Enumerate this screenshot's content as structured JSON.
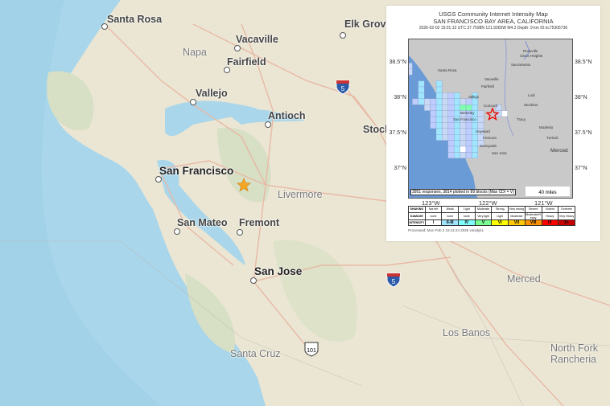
{
  "main_map": {
    "cities": [
      {
        "name": "Santa Rosa",
        "style": "normal"
      },
      {
        "name": "Napa",
        "style": "light"
      },
      {
        "name": "Vacaville",
        "style": "normal"
      },
      {
        "name": "Elk Grove",
        "style": "normal"
      },
      {
        "name": "Fairfield",
        "style": "normal"
      },
      {
        "name": "Vallejo",
        "style": "normal"
      },
      {
        "name": "Antioch",
        "style": "normal"
      },
      {
        "name": "Stock",
        "style": "normal"
      },
      {
        "name": "San Francisco",
        "style": "big"
      },
      {
        "name": "Livermore",
        "style": "light"
      },
      {
        "name": "San Mateo",
        "style": "normal"
      },
      {
        "name": "Fremont",
        "style": "normal"
      },
      {
        "name": "San Jose",
        "style": "big"
      },
      {
        "name": "Merced",
        "style": "light"
      },
      {
        "name": "Los Banos",
        "style": "light"
      },
      {
        "name": "Santa Cruz",
        "style": "light"
      },
      {
        "name": "North Fork Rancheria",
        "style": "light"
      }
    ],
    "highways": [
      "5",
      "5",
      "101"
    ],
    "epicenter_marker": "star-icon",
    "colors": {
      "land": "#ebe6d3",
      "ocean": "#a9d6ea",
      "epicenter": "#f5a623"
    }
  },
  "inset": {
    "title": "USGS Community Internet Intensity Map",
    "subtitle": "SAN FRANCISCO BAY AREA, CALIFORNIA",
    "event_line": "2026-02-02 15:01:13 UTC 37.7598N 121.9365W M4.2 Depth: 9 km ID:nc75305736",
    "lat_labels": [
      "38.5°N",
      "38°N",
      "37.5°N",
      "37°N"
    ],
    "lon_labels": [
      "123°W",
      "122°W",
      "121°W"
    ],
    "map_labels": [
      "Santa Rosa",
      "Vacaville",
      "Fairfield",
      "Vallejo",
      "Concord",
      "Berkeley",
      "San Francisco",
      "Hayward",
      "Fremont",
      "Sunnyvale",
      "San Jose",
      "Sacramento",
      "Roseville",
      "Citrus Heights",
      "Lodi",
      "Stockton",
      "Tracy",
      "Modesto",
      "Turlock",
      "Merced"
    ],
    "responses": "3951 responses, 3814 plotted in 89 blocks (Max CDI = V)",
    "scale": "40 miles",
    "legend": {
      "rows": [
        {
          "header": "SHAKING",
          "cells": [
            "Not felt",
            "Weak",
            "Light",
            "Moderate",
            "Strong",
            "Very strong",
            "Severe",
            "Violent",
            "Extreme"
          ]
        },
        {
          "header": "DAMAGE",
          "cells": [
            "none",
            "none",
            "none",
            "Very light",
            "Light",
            "Moderate",
            "Moderate/Heavy",
            "Heavy",
            "Very Heavy"
          ]
        },
        {
          "header": "INTENSITY",
          "cells": [
            "I",
            "II-III",
            "IV",
            "V",
            "VI",
            "VII",
            "VIII",
            "IX",
            "X+"
          ]
        }
      ],
      "intensity_colors": [
        "#ffffff",
        "#bfccff",
        "#a0e6ff",
        "#80ffff",
        "#7aff93",
        "#ffff00",
        "#ffc800",
        "#ff9100",
        "#ff0000",
        "#c80000"
      ]
    },
    "processed": "Processed: Mon Feb 2 15:41:24 2026 vinsdyk1"
  }
}
